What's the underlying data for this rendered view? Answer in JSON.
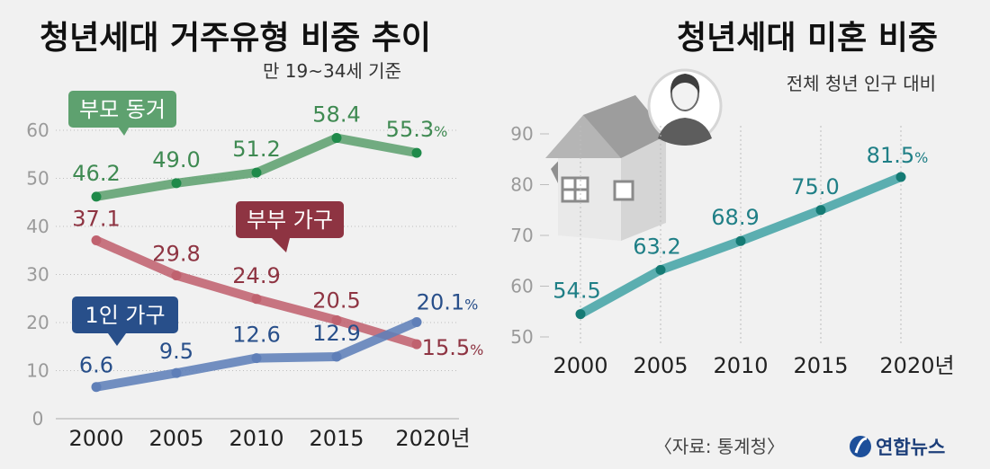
{
  "colors": {
    "background": "#f1f1f1",
    "green": "#5ea16f",
    "green_text": "#3f8a52",
    "green_dot": "#1f8a4a",
    "red": "#c0626f",
    "red_text": "#8e3442",
    "blue": "#5f7fb8",
    "blue_text": "#284f8a",
    "teal": "#4aa6a8",
    "teal_text": "#1f7f86",
    "teal_dot": "#157a74",
    "axis_text": "#9a9a9a",
    "grid": "#bdbdbd"
  },
  "footer": {
    "source": "〈자료: 통계청〉",
    "logo_text": "연합뉴스",
    "logo_icon": "yonhap-logo-icon"
  },
  "chart_data": [
    {
      "type": "line",
      "title": "청년세대 거주유형 비중 추이",
      "subtitle": "만 19~34세 기준",
      "categories": [
        "2000",
        "2005",
        "2010",
        "2015",
        "2020년"
      ],
      "ylim": [
        0,
        60
      ],
      "yticks": [
        "0",
        "10",
        "20",
        "30",
        "40",
        "50",
        "60"
      ],
      "grid": true,
      "unit": "%",
      "series": [
        {
          "name": "부모 동거",
          "values": [
            46.2,
            49.0,
            51.2,
            58.4,
            55.3
          ],
          "labels": [
            "46.2",
            "49.0",
            "51.2",
            "58.4",
            "55.3"
          ]
        },
        {
          "name": "부부 가구",
          "values": [
            37.1,
            29.8,
            24.9,
            20.5,
            15.5
          ],
          "labels": [
            "37.1",
            "29.8",
            "24.9",
            "20.5",
            "15.5"
          ]
        },
        {
          "name": "1인 가구",
          "values": [
            6.6,
            9.5,
            12.6,
            12.9,
            20.1
          ],
          "labels": [
            "6.6",
            "9.5",
            "12.6",
            "12.9",
            "20.1"
          ]
        }
      ]
    },
    {
      "type": "line",
      "title": "청년세대 미혼 비중",
      "subtitle": "전체 청년 인구 대비",
      "categories": [
        "2000",
        "2005",
        "2010",
        "2015",
        "2020년"
      ],
      "ylim": [
        50,
        90
      ],
      "yticks": [
        "50",
        "60",
        "70",
        "80",
        "90"
      ],
      "grid": "vertical dotted",
      "unit": "%",
      "series": [
        {
          "values": [
            54.5,
            63.2,
            68.9,
            75.0,
            81.5
          ],
          "labels": [
            "54.5",
            "63.2",
            "68.9",
            "75.0",
            "81.5"
          ]
        }
      ]
    }
  ]
}
